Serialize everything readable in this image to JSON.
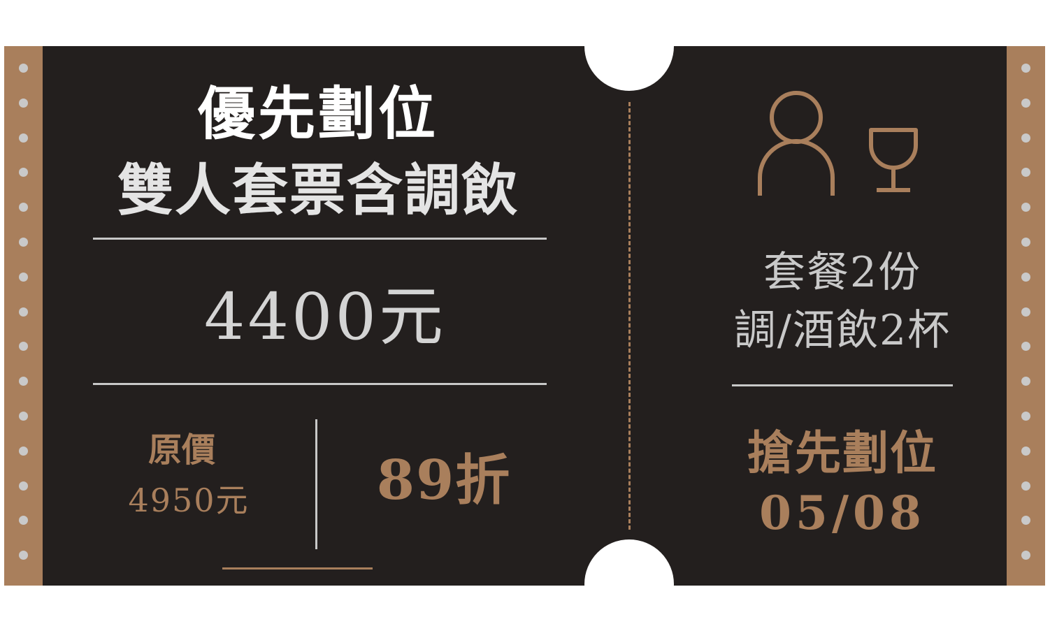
{
  "colors": {
    "background": "#ffffff",
    "ticket": "#231f1e",
    "accent": "#a97f5c",
    "dots": "#c9c9c9",
    "heading": "#ffffff",
    "text": "#d4d4d4"
  },
  "ticket": {
    "title_line1": "優先劃位",
    "title_line2": "雙人套票含調飲",
    "price": "4400元",
    "original_label": "原價",
    "original_price": "4950元",
    "discount": "89折"
  },
  "stub": {
    "icons": [
      "person-icon",
      "wine-glass-icon"
    ],
    "line1": "套餐2份",
    "line2": "調/酒飲2杯",
    "cta": "搶先劃位",
    "date": "05/08"
  }
}
